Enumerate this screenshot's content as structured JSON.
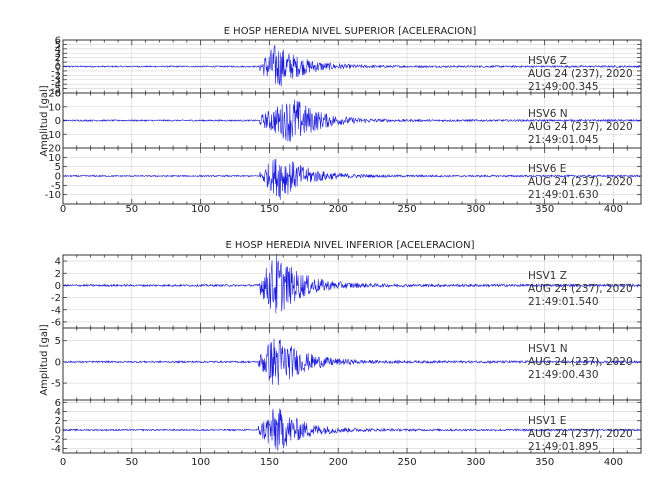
{
  "panels": [
    {
      "title": "E HOSP HEREDIA NIVEL SUPERIOR [ACELERACION]",
      "ylabel": "Amplitud [gal]"
    },
    {
      "title": "E HOSP HEREDIA NIVEL INFERIOR [ACELERACION]",
      "ylabel": "Amplitud [gal]"
    }
  ],
  "chart_data": [
    {
      "type": "line",
      "title": "E HOSP HEREDIA NIVEL SUPERIOR [ACELERACION]",
      "ylabel": "Amplitud [gal]",
      "xlim": [
        0,
        420
      ],
      "xticks": [
        0,
        50,
        100,
        150,
        200,
        250,
        300,
        350,
        400
      ],
      "line_color": "#1a1adb",
      "grid": true,
      "traces": [
        {
          "station": "HSV6",
          "component": "Z",
          "date": "AUG 24 (237), 2020",
          "time": "21:49:00.345",
          "ylim": [
            -6,
            6
          ],
          "yticks": [
            -6,
            -5,
            -4,
            -3,
            -2,
            -1,
            0,
            1,
            2,
            3,
            4,
            5,
            6
          ],
          "onset_s": 143,
          "peak_s": 155,
          "peak_amp": 5.5
        },
        {
          "station": "HSV6",
          "component": "N",
          "date": "AUG 24 (237), 2020",
          "time": "21:49:01.045",
          "ylim": [
            -20,
            20
          ],
          "yticks": [
            -20,
            -10,
            0,
            10,
            20
          ],
          "onset_s": 143,
          "peak_s": 168,
          "peak_amp": 18
        },
        {
          "station": "HSV6",
          "component": "E",
          "date": "AUG 24 (237), 2020",
          "time": "21:49:01.630",
          "ylim": [
            -15,
            15
          ],
          "yticks": [
            -10,
            -5,
            0,
            5,
            10
          ],
          "onset_s": 143,
          "peak_s": 158,
          "peak_amp": 13
        }
      ]
    },
    {
      "type": "line",
      "title": "E HOSP HEREDIA NIVEL INFERIOR [ACELERACION]",
      "ylabel": "Amplitud [gal]",
      "xlim": [
        0,
        420
      ],
      "xticks": [
        0,
        50,
        100,
        150,
        200,
        250,
        300,
        350,
        400
      ],
      "line_color": "#1a1adb",
      "grid": true,
      "traces": [
        {
          "station": "HSV1",
          "component": "Z",
          "date": "AUG 24 (237), 2020",
          "time": "21:49:01.540",
          "ylim": [
            -7,
            5
          ],
          "yticks": [
            -6,
            -4,
            -2,
            0,
            2,
            4
          ],
          "onset_s": 142,
          "peak_s": 155,
          "peak_amp": 5.5
        },
        {
          "station": "HSV1",
          "component": "N",
          "date": "AUG 24 (237), 2020",
          "time": "21:49:00.430",
          "ylim": [
            -9,
            8
          ],
          "yticks": [
            -5,
            0,
            5
          ],
          "onset_s": 142,
          "peak_s": 155,
          "peak_amp": 7
        },
        {
          "station": "HSV1",
          "component": "E",
          "date": "AUG 24 (237), 2020",
          "time": "21:49:01.895",
          "ylim": [
            -5,
            6.5
          ],
          "yticks": [
            -4,
            -2,
            0,
            2,
            4,
            6
          ],
          "onset_s": 142,
          "peak_s": 155,
          "peak_amp": 5.5
        }
      ]
    }
  ]
}
